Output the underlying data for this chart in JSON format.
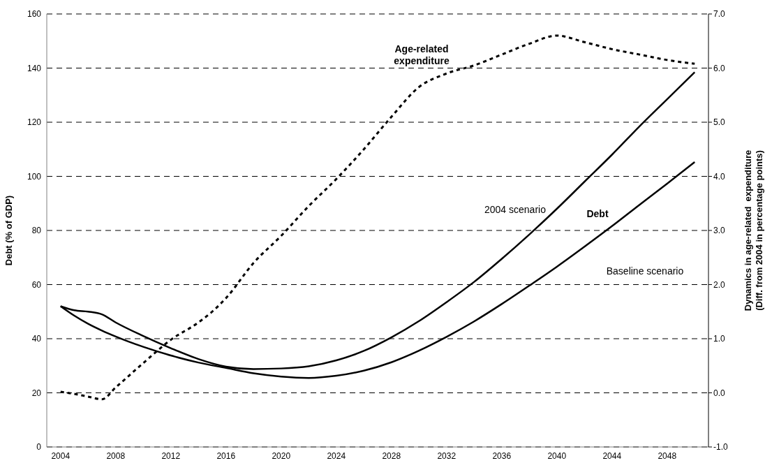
{
  "chart_data": {
    "type": "line",
    "ylabel": "Debt (% of GDP)",
    "y2label": "Dynamics in age-related  expenditure\n(Diff. from 2004 in percentage points)",
    "annotations": [
      "Debt"
    ],
    "xlim": [
      2003,
      2051
    ],
    "xticks": [
      2004,
      2008,
      2012,
      2016,
      2020,
      2024,
      2028,
      2032,
      2036,
      2040,
      2044,
      2048
    ],
    "ylim": [
      0,
      160
    ],
    "yticks": [
      0,
      20,
      40,
      60,
      80,
      100,
      120,
      140,
      160
    ],
    "y2lim": [
      -1,
      7
    ],
    "y2ticks": [
      {
        "value": -1,
        "label": "-1.0"
      },
      {
        "value": 0,
        "label": "0.0"
      },
      {
        "value": 1,
        "label": "1.0"
      },
      {
        "value": 2,
        "label": "2.0"
      },
      {
        "value": 3,
        "label": "3.0"
      },
      {
        "value": 4,
        "label": "4.0"
      },
      {
        "value": 5,
        "label": "5.0"
      },
      {
        "value": 6,
        "label": "6.0"
      },
      {
        "value": 7,
        "label": "7.0"
      }
    ],
    "grid": "y",
    "legend": false,
    "marker": "none",
    "series": [
      {
        "name": "2004 scenario",
        "color": "#000000",
        "line_style": "solid",
        "x": [
          2004,
          2005,
          2006,
          2007,
          2008,
          2010,
          2012,
          2014,
          2016,
          2018,
          2020,
          2022,
          2024,
          2026,
          2028,
          2030,
          2032,
          2034,
          2036,
          2038,
          2040,
          2042,
          2044,
          2046,
          2048,
          2050
        ],
        "values": [
          52,
          50.5,
          50,
          49,
          46,
          41,
          36.5,
          32.5,
          29.7,
          28.8,
          29,
          29.8,
          32,
          35.5,
          40.5,
          46.5,
          53.5,
          61,
          69.5,
          78.5,
          88,
          98,
          108,
          118.5,
          128.5,
          138.5
        ]
      },
      {
        "name": "Baseline scenario",
        "color": "#000000",
        "line_style": "solid",
        "x": [
          2004,
          2005,
          2006,
          2007,
          2008,
          2009,
          2010,
          2012,
          2014,
          2016,
          2018,
          2020,
          2022,
          2024,
          2026,
          2028,
          2030,
          2032,
          2034,
          2036,
          2038,
          2040,
          2042,
          2044,
          2046,
          2048,
          2050
        ],
        "values": [
          52,
          48.5,
          45.5,
          43,
          40.8,
          38.8,
          37,
          33.8,
          31.2,
          29.2,
          27.2,
          26,
          25.5,
          26.3,
          28.2,
          31.3,
          35.6,
          40.7,
          46.4,
          52.8,
          59.6,
          66.6,
          74,
          81.6,
          89.5,
          97.3,
          105.3
        ]
      },
      {
        "name": "Age-related expenditure",
        "color": "#000000",
        "line_style": "dashed",
        "axis": "y2",
        "x": [
          2004,
          2005,
          2006,
          2007,
          2008,
          2010,
          2012,
          2014,
          2015,
          2016,
          2018,
          2020,
          2022,
          2024,
          2026,
          2028,
          2030,
          2032,
          2034,
          2036,
          2038,
          2040,
          2042,
          2044,
          2046,
          2048,
          2050
        ],
        "values": [
          0.02,
          -0.02,
          -0.07,
          -0.12,
          0.1,
          0.55,
          0.98,
          1.3,
          1.5,
          1.75,
          2.4,
          2.9,
          3.45,
          3.95,
          4.5,
          5.1,
          5.65,
          5.9,
          6.05,
          6.25,
          6.45,
          6.6,
          6.48,
          6.35,
          6.25,
          6.15,
          6.08
        ]
      }
    ]
  }
}
